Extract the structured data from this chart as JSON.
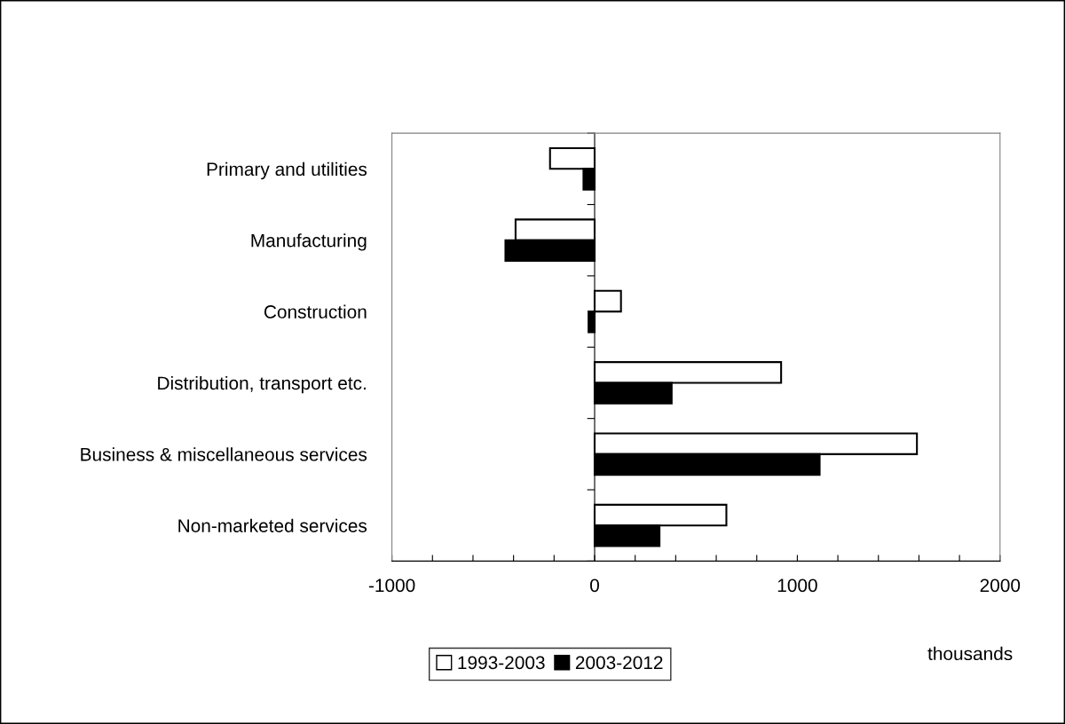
{
  "chart_data": {
    "type": "bar",
    "orientation": "horizontal",
    "xlabel": "thousands",
    "categories": [
      "Primary and utilities",
      "Manufacturing",
      "Construction",
      "Distribution, transport etc.",
      "Business & miscellaneous services",
      "Non-marketed services"
    ],
    "series": [
      {
        "name": "1993-2003",
        "color": "#ffffff",
        "values": [
          -220,
          -390,
          130,
          920,
          1590,
          650
        ]
      },
      {
        "name": "2003-2012",
        "color": "#000000",
        "values": [
          -55,
          -440,
          -30,
          380,
          1110,
          320
        ]
      }
    ],
    "xlim": [
      -1000,
      2000
    ],
    "xticks": [
      -1000,
      {
        "value": -800,
        "label": null
      },
      {
        "value": -600,
        "label": null
      },
      {
        "value": -400,
        "label": null
      },
      {
        "value": -200,
        "label": null
      },
      0,
      {
        "value": 200,
        "label": null
      },
      {
        "value": 400,
        "label": null
      },
      {
        "value": 600,
        "label": null
      },
      {
        "value": 800,
        "label": null
      },
      1000,
      {
        "value": 1200,
        "label": null
      },
      {
        "value": 1400,
        "label": null
      },
      {
        "value": 1600,
        "label": null
      },
      {
        "value": 1800,
        "label": null
      },
      2000
    ],
    "legend": "bottom"
  }
}
